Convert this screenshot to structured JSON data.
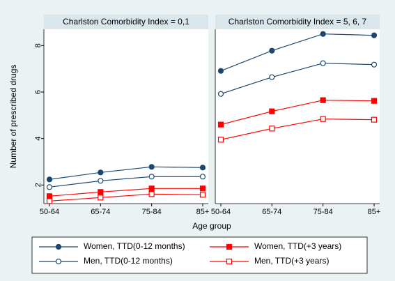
{
  "chart_data": [
    {
      "type": "line",
      "title": "Charlston Comorbidity Index = 0,1",
      "ylabel": "Number of prescribed drugs",
      "xlabel": "Age group",
      "categories": [
        "50-64",
        "65-74",
        "75-84",
        "85+"
      ],
      "ylim": [
        1.2,
        8.7
      ],
      "yticks": [
        2,
        4,
        6,
        8
      ],
      "series": [
        {
          "name": "Women, TTD(0-12 months)",
          "color": "#1a476f",
          "marker": "circle",
          "filled": true,
          "values": [
            2.24,
            2.54,
            2.78,
            2.75
          ]
        },
        {
          "name": "Men, TTD(0-12 months)",
          "color": "#1a476f",
          "marker": "circle",
          "filled": false,
          "values": [
            1.91,
            2.18,
            2.36,
            2.36
          ]
        },
        {
          "name": "Women, TTD(+3 years)",
          "color": "#ff0000",
          "marker": "square",
          "filled": true,
          "values": [
            1.52,
            1.7,
            1.85,
            1.85
          ]
        },
        {
          "name": "Men, TTD(+3 years)",
          "color": "#ff0000",
          "marker": "square",
          "filled": false,
          "values": [
            1.31,
            1.46,
            1.61,
            1.58
          ]
        }
      ]
    },
    {
      "type": "line",
      "title": "Charlston Comorbidity Index = 5, 6, 7",
      "categories": [
        "50-64",
        "65-74",
        "75-84",
        "85+"
      ],
      "ylim": [
        1.2,
        8.7
      ],
      "series": [
        {
          "color": "#1a476f",
          "marker": "circle",
          "filled": true,
          "values": [
            6.91,
            7.78,
            8.5,
            8.44
          ]
        },
        {
          "color": "#1a476f",
          "marker": "circle",
          "filled": false,
          "values": [
            5.92,
            6.64,
            7.24,
            7.18
          ]
        },
        {
          "color": "#ff0000",
          "marker": "square",
          "filled": true,
          "values": [
            4.6,
            5.17,
            5.65,
            5.62
          ]
        },
        {
          "color": "#ff0000",
          "marker": "square",
          "filled": false,
          "values": [
            3.95,
            4.43,
            4.84,
            4.81
          ]
        }
      ]
    }
  ]
}
